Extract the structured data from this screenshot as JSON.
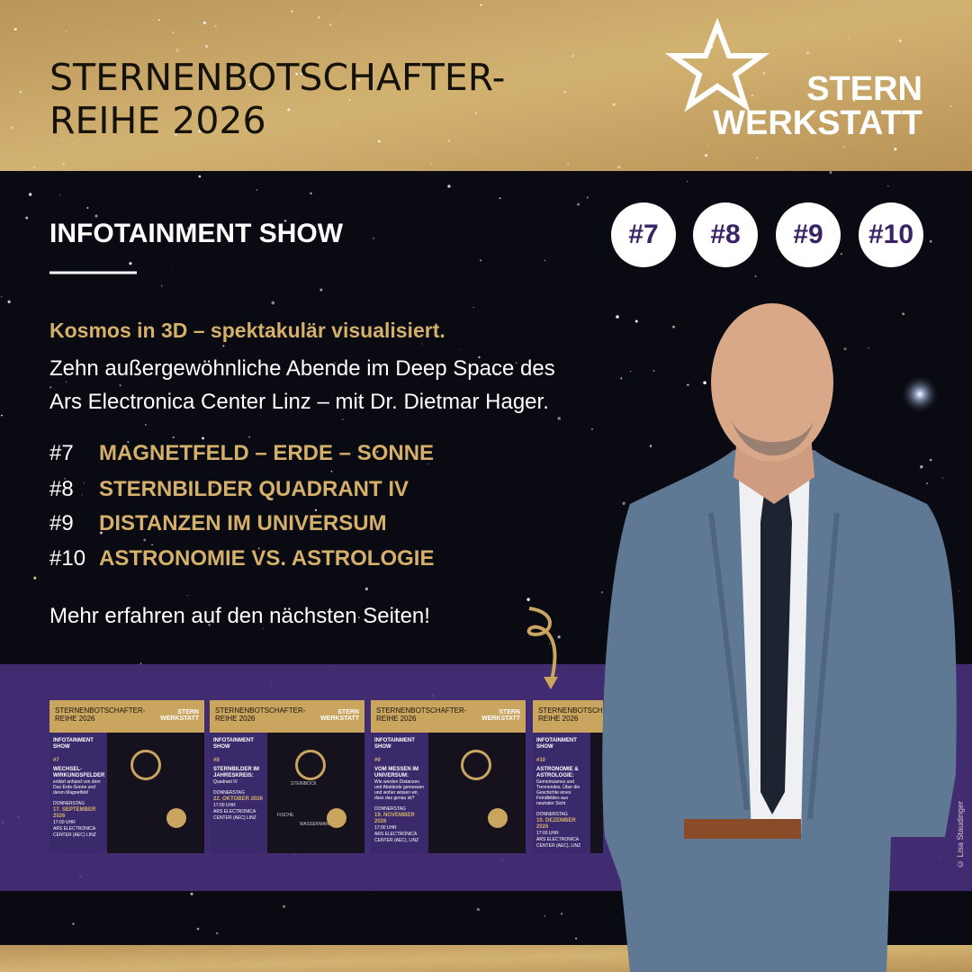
{
  "header": {
    "title_lines": [
      "STERNENBOTSCHAFTER-",
      "REIHE 2026"
    ],
    "logo": [
      "STERN",
      "WERKSTATT"
    ]
  },
  "section_title": "INFOTAINMENT SHOW",
  "badges": [
    "#7",
    "#8",
    "#9",
    "#10"
  ],
  "intro": {
    "highlight": "Kosmos in 3D – spektakulär visualisiert.",
    "lines": [
      "Zehn außergewöhnliche Abende im Deep Space des",
      "Ars Electronica Center Linz – mit Dr. Dietmar Hager."
    ]
  },
  "episodes": [
    {
      "number": "#7",
      "title": "MAGNETFELD – ERDE – SONNE"
    },
    {
      "number": "#8",
      "title": "STERNBILDER QUADRANT IV"
    },
    {
      "number": "#9",
      "title": "DISTANZEN IM UNIVERSUM"
    },
    {
      "number": "#10",
      "title": "ASTRONOMIE VS. ASTROLOGIE"
    }
  ],
  "cta": "Mehr erfahren auf den nächsten Seiten!",
  "cards": [
    {
      "number": "#7",
      "title": "WECHSEL-WIRKUNGSFELDER",
      "text": "erklärt anhand von dem Duo Erde-Sonne und deren Magnetfeld",
      "weekday": "DONNERSTAG",
      "date": "17. SEPTEMBER 2026",
      "time": "17:00 UHR",
      "venue": "ARS ELECTRONICA CENTER (AEC) LINZ",
      "labels": []
    },
    {
      "number": "#8",
      "title": "STERNBILDER IM JAHRESKREIS:",
      "text": "Quadrant IV",
      "weekday": "DONNERSTAG",
      "date": "22. OKTOBER 2026",
      "time": "17:00 UHR",
      "venue": "ARS ELECTRONICA CENTER (AEC) LINZ",
      "labels": [
        "STEINBOCK",
        "FISCHE",
        "WASSERMANN"
      ]
    },
    {
      "number": "#9",
      "title": "VOM MESSEN IM UNIVERSUM:",
      "text": "Wie werden Distanzen und Abstände gemessen und woher wissen wir, dass das genau ist?",
      "weekday": "DONNERSTAG",
      "date": "19. NOVEMBER 2026",
      "time": "17:00 UHR",
      "venue": "ARS ELECTRONICA CENTER (AEC), LINZ",
      "labels": []
    },
    {
      "number": "#10",
      "title": "ASTRONOMIE & ASTROLOGIE:",
      "text": "Gemeinsames und Trennendes. Über die Geschichte eines Feindbildes aus neutraler Sicht",
      "weekday": "DONNERSTAG",
      "date": "10. DEZEMBER 2026",
      "time": "17:00 UHR",
      "venue": "ARS ELECTRONICA CENTER (AEC), LINZ",
      "labels": []
    }
  ],
  "credit": "© Lisa Staudinger"
}
